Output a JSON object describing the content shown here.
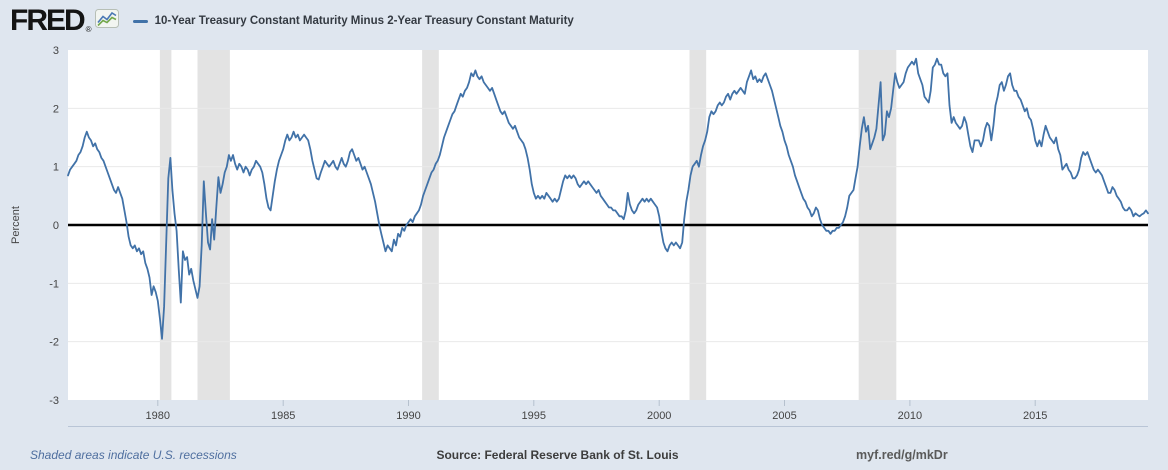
{
  "header": {
    "logo_text": "FRED",
    "logo_registered": "®",
    "logo_icon": "line-chart-icon"
  },
  "footer": {
    "recession_note": "Shaded areas indicate U.S. recessions",
    "source": "Source: Federal Reserve Bank of St. Louis",
    "short_url": "myf.red/g/mkDr"
  },
  "colors": {
    "page_background": "#dfe6ef",
    "plot_background": "#ffffff",
    "recession_band": "#e3e3e3",
    "gridline": "#e9e9e9",
    "zero_line": "#000000",
    "series_line": "#4172a8",
    "axis_text": "#444444",
    "tick_mark": "#b6c1ce"
  },
  "chart_data": {
    "type": "line",
    "title": "10-Year Treasury Constant Maturity Minus 2-Year Treasury Constant Maturity",
    "xlabel": "",
    "ylabel": "Percent",
    "ylim": [
      -3,
      3
    ],
    "yticks": [
      3,
      2,
      1,
      0,
      -1,
      -2,
      -3
    ],
    "xticks": [
      1980,
      1985,
      1990,
      1995,
      2000,
      2005,
      2010,
      2015
    ],
    "frequency": "monthly",
    "x_start": {
      "year": 1976,
      "month": 6
    },
    "x_end": {
      "year": 2019,
      "month": 7
    },
    "grid": "horizontal-only",
    "zero_line": true,
    "legend_position": "top-left-header",
    "recessions": [
      [
        1980.083,
        1980.542
      ],
      [
        1981.583,
        1982.875
      ],
      [
        1990.542,
        1991.208
      ],
      [
        2001.208,
        2001.875
      ],
      [
        2007.958,
        2009.458
      ]
    ],
    "series": [
      {
        "name": "10-Year Treasury Constant Maturity Minus 2-Year Treasury Constant Maturity",
        "color": "#4172a8",
        "units": "percent",
        "values": [
          0.85,
          0.95,
          1.0,
          1.05,
          1.1,
          1.2,
          1.25,
          1.35,
          1.5,
          1.6,
          1.5,
          1.45,
          1.35,
          1.4,
          1.3,
          1.25,
          1.15,
          1.1,
          1.0,
          0.9,
          0.8,
          0.7,
          0.6,
          0.55,
          0.65,
          0.55,
          0.45,
          0.25,
          0.05,
          -0.2,
          -0.35,
          -0.4,
          -0.35,
          -0.45,
          -0.4,
          -0.5,
          -0.45,
          -0.65,
          -0.75,
          -0.9,
          -1.2,
          -1.05,
          -1.15,
          -1.3,
          -1.6,
          -1.95,
          -1.4,
          -0.3,
          0.8,
          1.15,
          0.6,
          0.2,
          -0.1,
          -0.75,
          -1.33,
          -0.45,
          -0.6,
          -0.55,
          -0.85,
          -0.75,
          -0.95,
          -1.1,
          -1.25,
          -1.05,
          -0.35,
          0.75,
          0.2,
          -0.3,
          -0.42,
          0.1,
          -0.25,
          0.3,
          0.82,
          0.55,
          0.7,
          0.9,
          1.0,
          1.2,
          1.1,
          1.2,
          1.05,
          0.95,
          1.05,
          1.0,
          0.9,
          1.0,
          0.95,
          0.85,
          0.95,
          1.0,
          1.1,
          1.05,
          1.0,
          0.9,
          0.7,
          0.45,
          0.3,
          0.25,
          0.5,
          0.75,
          0.95,
          1.1,
          1.2,
          1.3,
          1.45,
          1.55,
          1.45,
          1.5,
          1.6,
          1.5,
          1.55,
          1.45,
          1.5,
          1.55,
          1.5,
          1.45,
          1.3,
          1.1,
          0.95,
          0.8,
          0.78,
          0.9,
          1.0,
          1.1,
          1.05,
          1.0,
          1.05,
          1.1,
          1.0,
          0.95,
          1.05,
          1.15,
          1.05,
          1.0,
          1.1,
          1.25,
          1.3,
          1.2,
          1.1,
          1.15,
          1.05,
          0.95,
          1.0,
          0.9,
          0.8,
          0.7,
          0.55,
          0.4,
          0.2,
          0.0,
          -0.15,
          -0.3,
          -0.45,
          -0.35,
          -0.4,
          -0.45,
          -0.25,
          -0.35,
          -0.15,
          -0.2,
          -0.05,
          -0.1,
          0.0,
          0.05,
          0.1,
          0.05,
          0.15,
          0.2,
          0.25,
          0.35,
          0.5,
          0.6,
          0.7,
          0.8,
          0.9,
          0.95,
          1.05,
          1.1,
          1.2,
          1.35,
          1.5,
          1.6,
          1.7,
          1.8,
          1.9,
          1.95,
          2.05,
          2.15,
          2.25,
          2.2,
          2.3,
          2.35,
          2.45,
          2.6,
          2.55,
          2.65,
          2.55,
          2.5,
          2.55,
          2.45,
          2.4,
          2.35,
          2.3,
          2.35,
          2.25,
          2.15,
          2.05,
          1.95,
          1.9,
          1.95,
          1.85,
          1.75,
          1.7,
          1.65,
          1.7,
          1.6,
          1.5,
          1.45,
          1.4,
          1.3,
          1.15,
          0.95,
          0.7,
          0.55,
          0.45,
          0.5,
          0.45,
          0.5,
          0.45,
          0.55,
          0.5,
          0.45,
          0.4,
          0.45,
          0.4,
          0.45,
          0.6,
          0.75,
          0.85,
          0.8,
          0.85,
          0.8,
          0.85,
          0.8,
          0.7,
          0.65,
          0.7,
          0.75,
          0.7,
          0.75,
          0.7,
          0.65,
          0.6,
          0.55,
          0.6,
          0.5,
          0.45,
          0.4,
          0.35,
          0.3,
          0.3,
          0.25,
          0.25,
          0.2,
          0.15,
          0.15,
          0.1,
          0.25,
          0.55,
          0.35,
          0.25,
          0.2,
          0.25,
          0.35,
          0.4,
          0.45,
          0.4,
          0.45,
          0.4,
          0.45,
          0.4,
          0.35,
          0.3,
          0.15,
          -0.1,
          -0.3,
          -0.4,
          -0.45,
          -0.35,
          -0.3,
          -0.35,
          -0.3,
          -0.35,
          -0.4,
          -0.3,
          0.1,
          0.4,
          0.6,
          0.85,
          1.0,
          1.05,
          1.1,
          1.0,
          1.2,
          1.35,
          1.45,
          1.6,
          1.85,
          1.95,
          1.9,
          1.95,
          2.05,
          2.1,
          2.05,
          2.1,
          2.2,
          2.25,
          2.15,
          2.25,
          2.3,
          2.25,
          2.3,
          2.35,
          2.3,
          2.25,
          2.45,
          2.55,
          2.65,
          2.5,
          2.55,
          2.45,
          2.5,
          2.45,
          2.55,
          2.6,
          2.5,
          2.4,
          2.3,
          2.15,
          2.0,
          1.85,
          1.7,
          1.6,
          1.45,
          1.35,
          1.2,
          1.1,
          1.0,
          0.85,
          0.75,
          0.65,
          0.55,
          0.45,
          0.4,
          0.3,
          0.25,
          0.15,
          0.2,
          0.3,
          0.25,
          0.1,
          0.0,
          -0.05,
          -0.1,
          -0.1,
          -0.15,
          -0.1,
          -0.1,
          -0.05,
          -0.05,
          0.0,
          0.05,
          0.15,
          0.3,
          0.5,
          0.55,
          0.6,
          0.8,
          1.0,
          1.35,
          1.65,
          1.85,
          1.6,
          1.7,
          1.3,
          1.4,
          1.5,
          1.65,
          2.05,
          2.45,
          1.45,
          1.55,
          1.95,
          1.85,
          2.0,
          2.3,
          2.6,
          2.45,
          2.35,
          2.4,
          2.45,
          2.6,
          2.7,
          2.75,
          2.8,
          2.75,
          2.85,
          2.6,
          2.5,
          2.4,
          2.2,
          2.15,
          2.1,
          2.3,
          2.7,
          2.75,
          2.85,
          2.75,
          2.75,
          2.6,
          2.55,
          2.6,
          2.05,
          1.75,
          1.85,
          1.75,
          1.7,
          1.65,
          1.7,
          1.85,
          1.75,
          1.55,
          1.35,
          1.25,
          1.45,
          1.45,
          1.45,
          1.35,
          1.45,
          1.65,
          1.75,
          1.7,
          1.45,
          1.7,
          2.05,
          2.2,
          2.4,
          2.45,
          2.3,
          2.4,
          2.55,
          2.6,
          2.4,
          2.3,
          2.3,
          2.2,
          2.15,
          2.05,
          1.95,
          2.0,
          1.85,
          1.8,
          1.65,
          1.45,
          1.35,
          1.45,
          1.35,
          1.55,
          1.7,
          1.6,
          1.5,
          1.45,
          1.4,
          1.5,
          1.3,
          1.2,
          0.95,
          1.0,
          1.05,
          0.95,
          0.9,
          0.8,
          0.8,
          0.85,
          0.95,
          1.15,
          1.25,
          1.2,
          1.25,
          1.15,
          1.05,
          0.95,
          0.9,
          0.95,
          0.9,
          0.85,
          0.75,
          0.65,
          0.55,
          0.55,
          0.65,
          0.6,
          0.5,
          0.45,
          0.4,
          0.3,
          0.25,
          0.25,
          0.3,
          0.25,
          0.15,
          0.2,
          0.17,
          0.15,
          0.18,
          0.2,
          0.25,
          0.2
        ]
      }
    ]
  }
}
